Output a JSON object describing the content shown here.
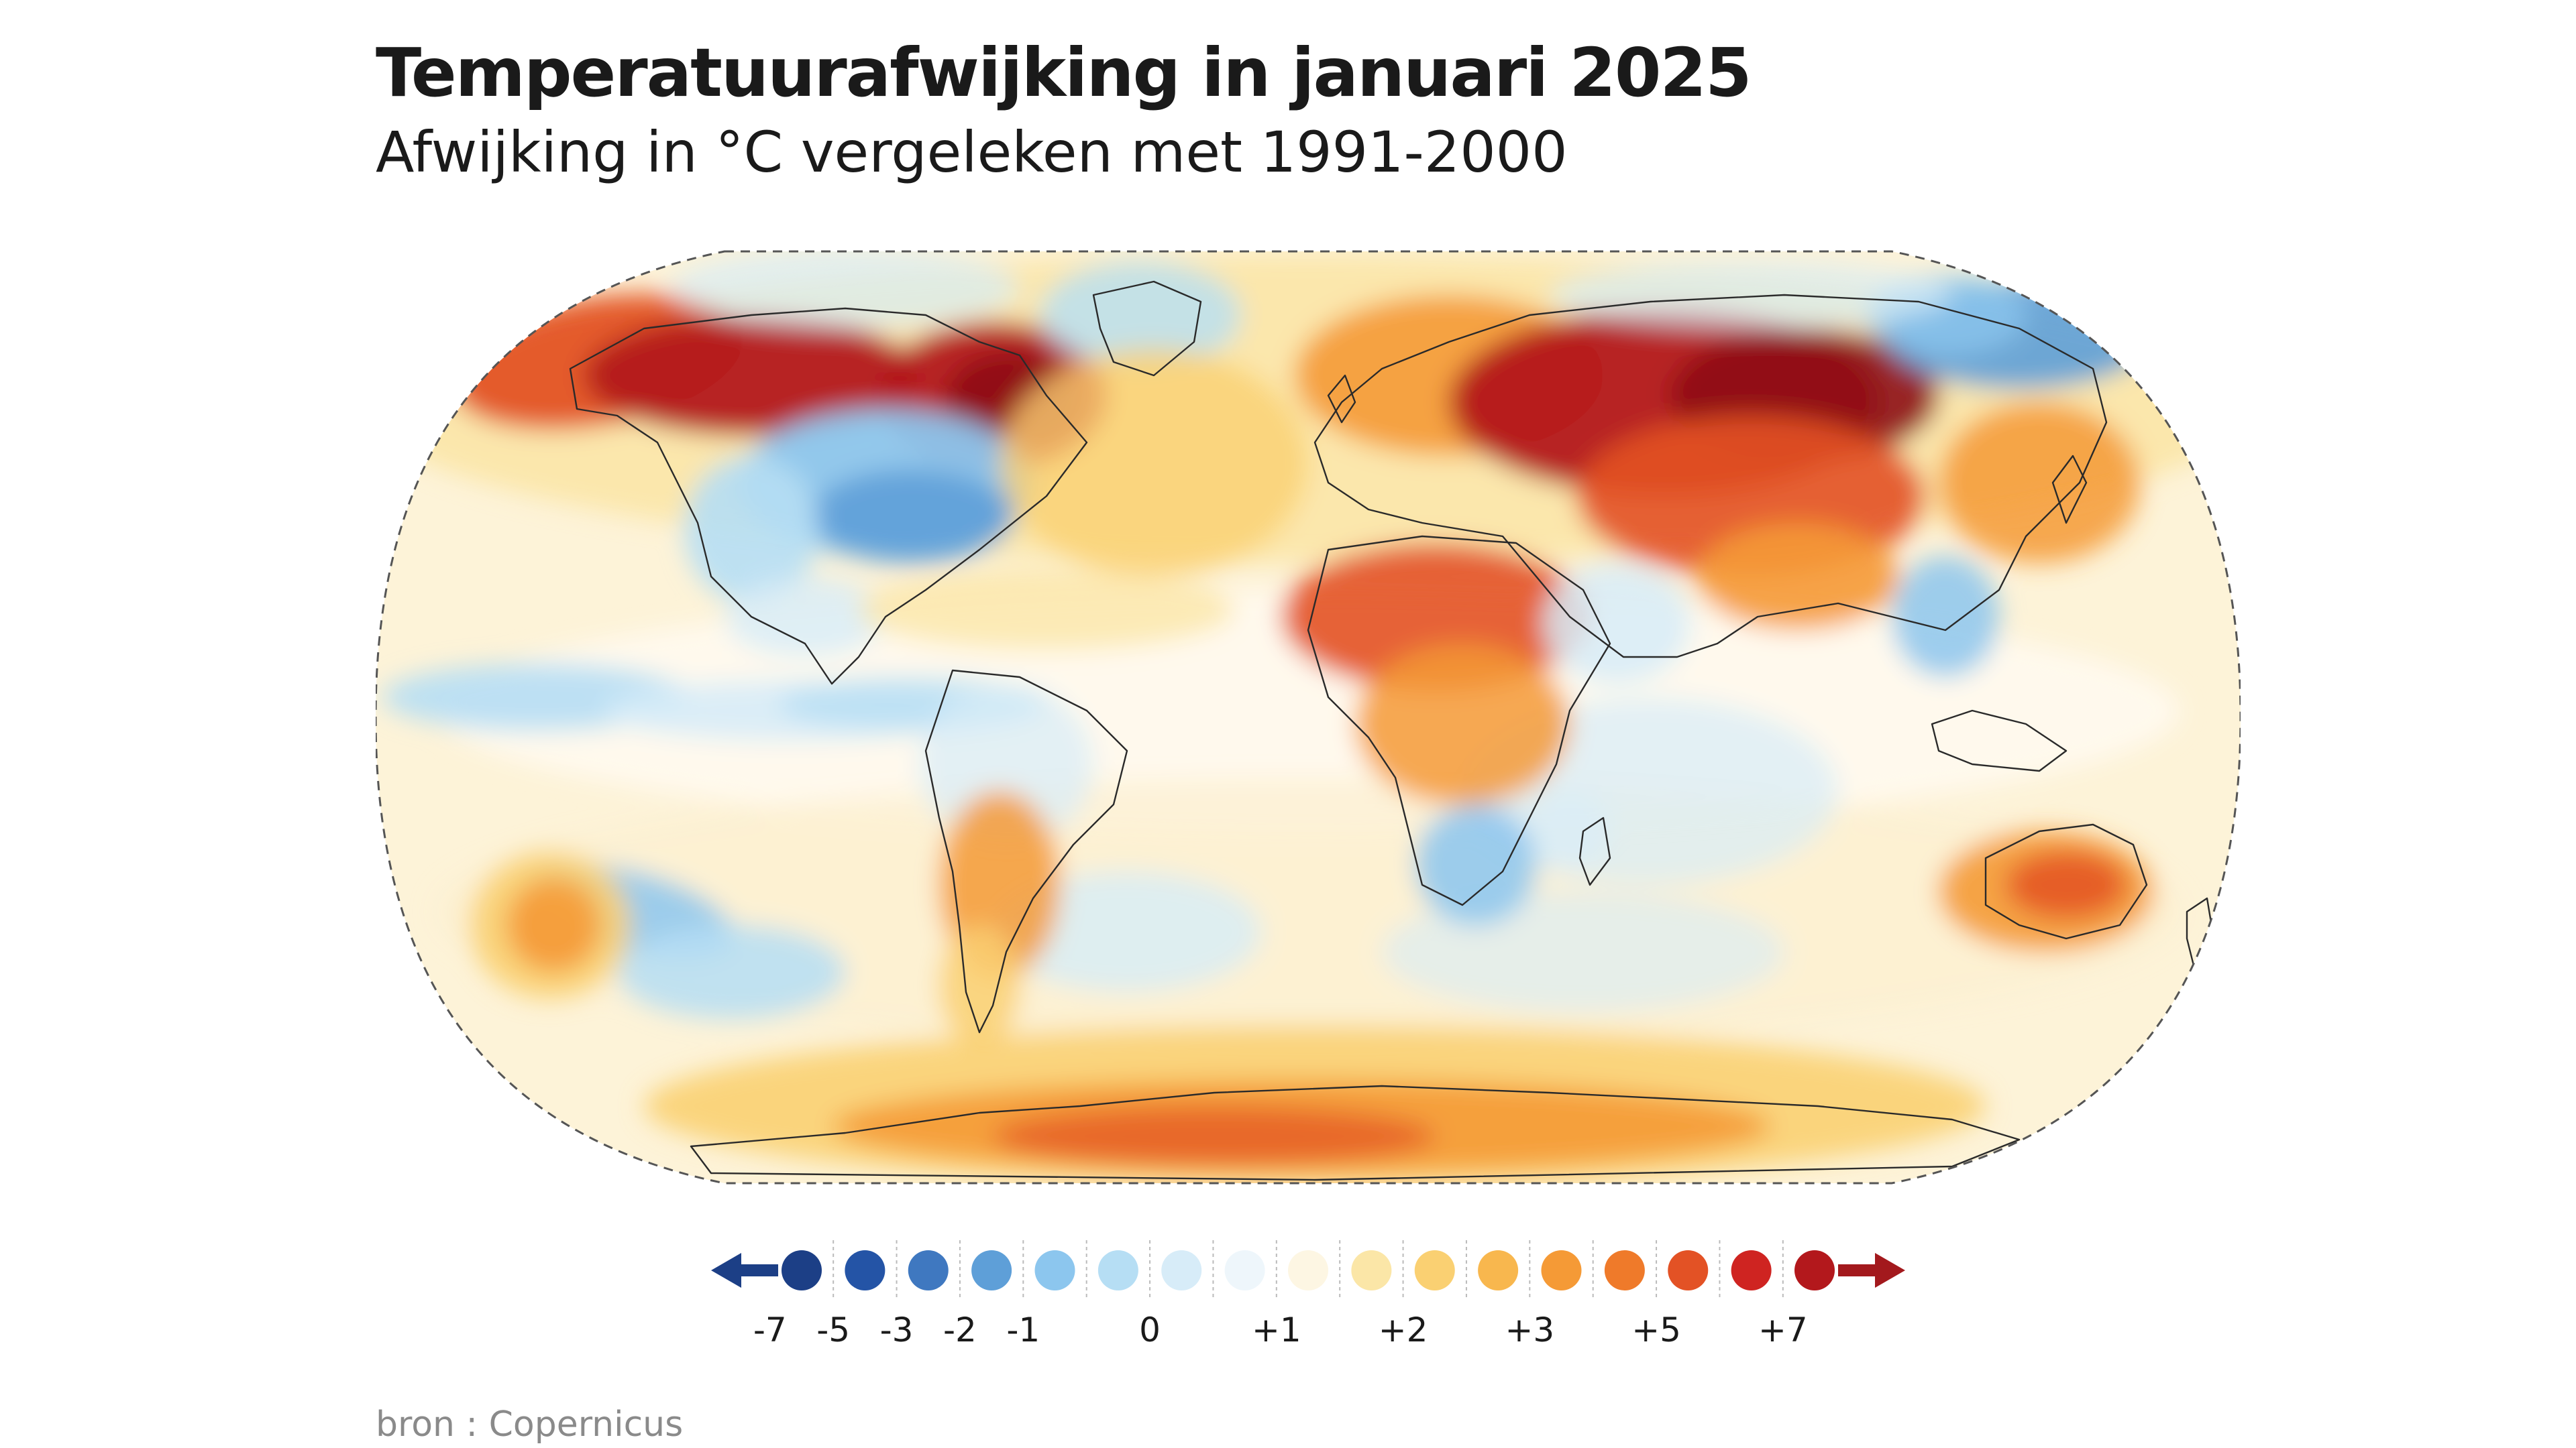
{
  "title": "Temperatuurafwijking in januari 2025",
  "subtitle": "Afwijking in °C vergeleken met 1991-2000",
  "source": "bron : Copernicus",
  "legend": {
    "ticks": [
      "-7",
      "-5",
      "-3",
      "-2",
      "-1",
      "0",
      "+1",
      "+2",
      "+3",
      "+5",
      "+7"
    ],
    "colors": [
      "#1c3f86",
      "#2454a6",
      "#3f78c0",
      "#5e9fd8",
      "#8cc6ee",
      "#b6def4",
      "#d7ecf8",
      "#eef6fb",
      "#fdf6e3",
      "#fbe6a7",
      "#fad072",
      "#f8b74e",
      "#f59a36",
      "#ef7a2a",
      "#e35225",
      "#cf2421",
      "#b3181c"
    ],
    "arrow_low_color": "#1c3f86",
    "arrow_high_color": "#a3191d"
  },
  "map": {
    "ocean_base_color": "#fdf3d8"
  }
}
